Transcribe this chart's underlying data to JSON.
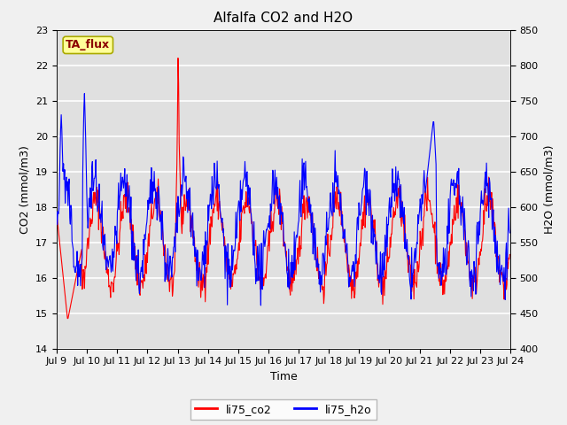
{
  "title": "Alfalfa CO2 and H2O",
  "xlabel": "Time",
  "ylabel_left": "CO2 (mmol/m3)",
  "ylabel_right": "H2O (mmol/m3)",
  "co2_ylim": [
    14.0,
    23.0
  ],
  "h2o_ylim": [
    400,
    850
  ],
  "co2_yticks": [
    14.0,
    15.0,
    16.0,
    17.0,
    18.0,
    19.0,
    20.0,
    21.0,
    22.0,
    23.0
  ],
  "h2o_yticks": [
    400,
    450,
    500,
    550,
    600,
    650,
    700,
    750,
    800,
    850
  ],
  "xtick_labels": [
    "Jul 9",
    "Jul 10",
    "Jul 11",
    "Jul 12",
    "Jul 13",
    "Jul 14",
    "Jul 15",
    "Jul 16",
    "Jul 17",
    "Jul 18",
    "Jul 19",
    "Jul 20",
    "Jul 21",
    "Jul 22",
    "Jul 23",
    "Jul 24"
  ],
  "line_co2_color": "#ff0000",
  "line_h2o_color": "#0000ff",
  "legend_co2": "li75_co2",
  "legend_h2o": "li75_h2o",
  "annotation_text": "TA_flux",
  "annotation_color": "#8b0000",
  "annotation_bg": "#ffff99",
  "annotation_border": "#aaaa00",
  "fig_bg_color": "#f0f0f0",
  "plot_bg_color": "#e0e0e0",
  "grid_color": "#ffffff",
  "title_fontsize": 11,
  "axis_fontsize": 9,
  "tick_fontsize": 8,
  "legend_fontsize": 9
}
